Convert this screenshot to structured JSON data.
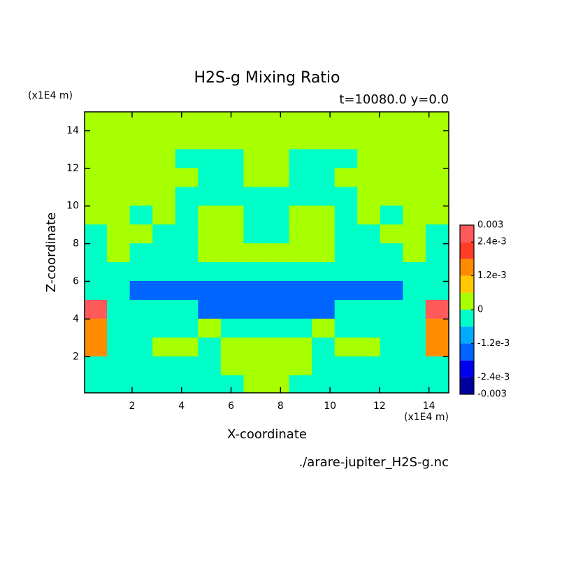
{
  "chart_data": {
    "type": "contour",
    "title": "H2S-g Mixing Ratio",
    "subtitle": "t=10080.0 y=0.0",
    "x_label": "X-coordinate",
    "y_label": "Z-coordinate",
    "x_unit": "(x1E4 m)",
    "y_unit": "(x1E4 m)",
    "source": "./arare-jupiter_H2S-g.nc",
    "xlim": [
      0.08,
      14.8
    ],
    "ylim": [
      0.08,
      15
    ],
    "xticks": [
      2,
      4,
      6,
      8,
      10,
      12,
      14
    ],
    "yticks": [
      2,
      4,
      6,
      8,
      10,
      12,
      14
    ],
    "x": [
      0.54,
      1.46,
      2.38,
      3.3,
      4.22,
      5.14,
      6.06,
      6.98,
      7.9,
      8.82,
      9.74,
      10.66,
      11.58,
      12.5,
      13.42,
      14.34
    ],
    "y": [
      14.5,
      13.5,
      12.5,
      11.5,
      10.5,
      9.5,
      8.5,
      7.5,
      6.5,
      5.5,
      4.5,
      3.5,
      2.5,
      1.5,
      0.5
    ],
    "z": [
      [
        0.0003,
        0.0003,
        0.0003,
        0.0003,
        0.0003,
        0.0003,
        0.0003,
        0.0003,
        0.0003,
        0.0003,
        0.0003,
        0.0003,
        0.0003,
        0.0003,
        0.0003,
        0.0003
      ],
      [
        0.0003,
        0.0003,
        0.0003,
        0.0003,
        0.0003,
        0.0003,
        0.0003,
        0.0003,
        0.0003,
        0.0003,
        0.0003,
        0.0003,
        0.0003,
        0.0003,
        0.0003,
        0.0003
      ],
      [
        0.0003,
        0.0003,
        0.0003,
        0.0003,
        -0.0003,
        -0.0003,
        -0.0003,
        0.0003,
        0.0003,
        -0.0003,
        -0.0003,
        -0.0003,
        0.0003,
        0.0003,
        0.0003,
        0.0003
      ],
      [
        0.0003,
        0.0003,
        0.0003,
        0.0003,
        0.0003,
        -0.0003,
        -0.0003,
        0.0003,
        0.0003,
        -0.0003,
        -0.0003,
        0.0003,
        0.0003,
        0.0003,
        0.0003,
        0.0003
      ],
      [
        0.0003,
        0.0003,
        0.0003,
        0.0003,
        -0.0003,
        -0.0003,
        -0.0003,
        -0.0003,
        -0.0003,
        -0.0003,
        -0.0003,
        -0.0003,
        0.0003,
        0.0003,
        0.0003,
        0.0003
      ],
      [
        0.0003,
        0.0003,
        -0.0003,
        0.0003,
        -0.0003,
        0.0003,
        0.0003,
        -0.0003,
        -0.0003,
        0.0003,
        0.0003,
        -0.0003,
        0.0003,
        -0.0003,
        0.0003,
        0.0003
      ],
      [
        -0.0003,
        0.0003,
        0.0003,
        -0.0003,
        -0.0003,
        0.0003,
        0.0003,
        -0.0003,
        -0.0003,
        0.0003,
        0.0003,
        -0.0003,
        -0.0003,
        0.0003,
        0.0003,
        -0.0003
      ],
      [
        -0.0003,
        0.0003,
        -0.0003,
        -0.0003,
        -0.0003,
        0.0003,
        0.0003,
        0.0003,
        0.0003,
        0.0003,
        0.0003,
        -0.0003,
        -0.0003,
        -0.0003,
        0.0003,
        -0.0003
      ],
      [
        -0.0003,
        -0.0003,
        -0.0003,
        -0.0003,
        -0.0003,
        -0.0003,
        -0.0003,
        -0.0003,
        -0.0003,
        -0.0003,
        -0.0003,
        -0.0003,
        -0.0003,
        -0.0003,
        -0.0003,
        -0.0003
      ],
      [
        -0.0003,
        -0.0003,
        -0.0015,
        -0.0015,
        -0.0015,
        -0.0015,
        -0.0015,
        -0.0015,
        -0.0015,
        -0.0015,
        -0.0015,
        -0.0015,
        -0.0015,
        -0.0015,
        -0.0003,
        -0.0003
      ],
      [
        0.0027,
        -0.0003,
        -0.0003,
        -0.0003,
        -0.0003,
        -0.0015,
        -0.0015,
        -0.0015,
        -0.0015,
        -0.0015,
        -0.0015,
        -0.0003,
        -0.0003,
        -0.0003,
        -0.0003,
        0.0027
      ],
      [
        0.0015,
        -0.0003,
        -0.0003,
        -0.0003,
        -0.0003,
        0.0003,
        -0.0003,
        -0.0003,
        -0.0003,
        -0.0003,
        0.0003,
        -0.0003,
        -0.0003,
        -0.0003,
        -0.0003,
        0.0015
      ],
      [
        0.0015,
        -0.0003,
        -0.0003,
        0.0003,
        0.0003,
        -0.0003,
        0.0003,
        0.0003,
        0.0003,
        0.0003,
        -0.0003,
        0.0003,
        0.0003,
        -0.0003,
        -0.0003,
        0.0015
      ],
      [
        -0.0003,
        -0.0003,
        -0.0003,
        -0.0003,
        -0.0003,
        -0.0003,
        0.0003,
        0.0003,
        0.0003,
        0.0003,
        -0.0003,
        -0.0003,
        -0.0003,
        -0.0003,
        -0.0003,
        -0.0003
      ],
      [
        -0.0003,
        -0.0003,
        -0.0003,
        -0.0003,
        -0.0003,
        -0.0003,
        -0.0003,
        0.0003,
        0.0003,
        -0.0003,
        -0.0003,
        -0.0003,
        -0.0003,
        -0.0003,
        -0.0003,
        -0.0003
      ]
    ],
    "levels": [
      -0.003,
      -0.0024,
      -0.0018,
      -0.0012,
      -0.0006,
      0,
      0.0006,
      0.0012,
      0.0018,
      0.0024,
      0.003
    ],
    "colors": [
      "#0000a0",
      "#0000f0",
      "#0064ff",
      "#00aaff",
      "#00ffc8",
      "#a8ff00",
      "#ffc800",
      "#ff8c00",
      "#ff3c28",
      "#ff5a5a"
    ],
    "colorbar_ticks": [
      -0.003,
      {
        "value": -0.0024,
        "label": "-2.4e-3"
      },
      {
        "value": -0.0012,
        "label": "-1.2e-3"
      },
      0,
      {
        "value": 0.0012,
        "label": "1.2e-3"
      },
      {
        "value": 0.0024,
        "label": "2.4e-3"
      },
      0.003
    ]
  }
}
